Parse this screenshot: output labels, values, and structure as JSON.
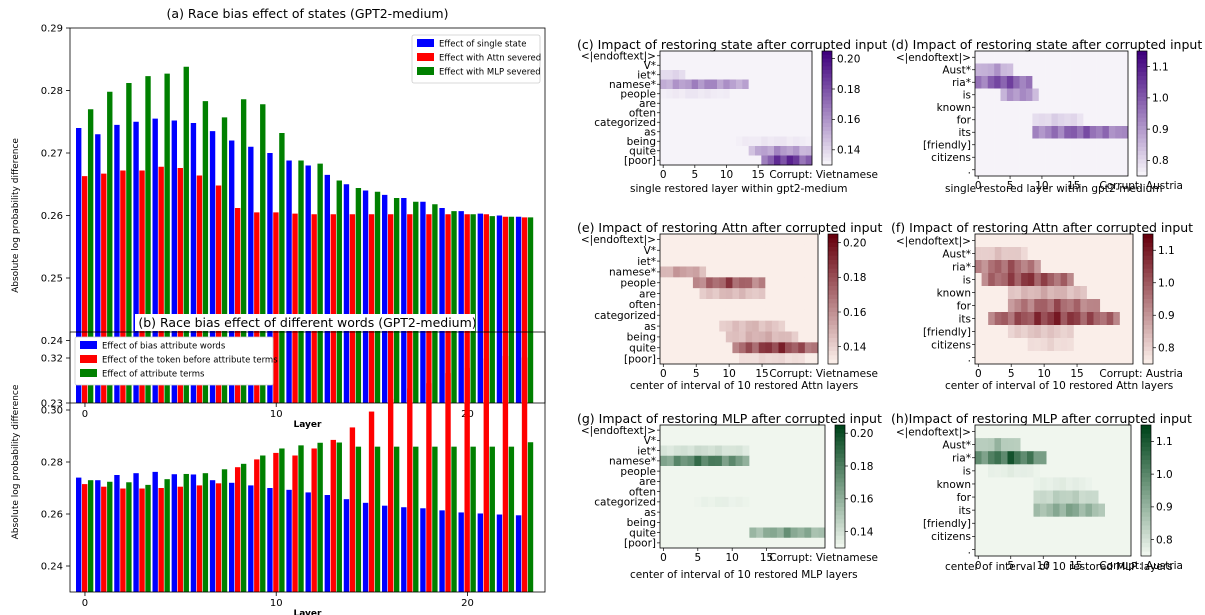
{
  "chart_data": [
    {
      "type": "bar",
      "title": "(a) Race bias effect of states (GPT2-medium)",
      "xlabel": "Layer",
      "ylabel": "Absolute log probability difference",
      "ylim": [
        0.23,
        0.29
      ],
      "yticks": [
        "0.23",
        "0.24",
        "0.25",
        "0.26",
        "0.27",
        "0.28",
        "0.29"
      ],
      "xticks": [
        "0",
        "10",
        "20"
      ],
      "legend_position": "top-right",
      "colors": [
        "#0000ff",
        "#ff0000",
        "#008000"
      ],
      "categories": [
        0,
        1,
        2,
        3,
        4,
        5,
        6,
        7,
        8,
        9,
        10,
        11,
        12,
        13,
        14,
        15,
        16,
        17,
        18,
        19,
        20,
        21,
        22,
        23
      ],
      "series": [
        {
          "name": "Effect of single state",
          "values": [
            0.274,
            0.273,
            0.2745,
            0.275,
            0.2755,
            0.2752,
            0.2748,
            0.2735,
            0.272,
            0.271,
            0.27,
            0.2688,
            0.268,
            0.2665,
            0.265,
            0.264,
            0.2633,
            0.2628,
            0.2622,
            0.2612,
            0.2607,
            0.2603,
            0.26,
            0.2598
          ]
        },
        {
          "name": "Effect with Attn severed",
          "values": [
            0.2663,
            0.2667,
            0.2672,
            0.2672,
            0.2678,
            0.2676,
            0.2664,
            0.2648,
            0.2612,
            0.2605,
            0.2605,
            0.2603,
            0.2602,
            0.2602,
            0.2602,
            0.2602,
            0.2602,
            0.2602,
            0.2602,
            0.2602,
            0.2602,
            0.2602,
            0.2598,
            0.2597
          ]
        },
        {
          "name": "Effect with MLP severed",
          "values": [
            0.277,
            0.2798,
            0.2812,
            0.2823,
            0.2827,
            0.2838,
            0.2783,
            0.2757,
            0.2786,
            0.2778,
            0.2732,
            0.2688,
            0.2683,
            0.2656,
            0.2644,
            0.2638,
            0.2628,
            0.2622,
            0.2618,
            0.2607,
            0.2602,
            0.2599,
            0.2598,
            0.2597
          ]
        }
      ]
    },
    {
      "type": "bar",
      "title": "(b) Race bias effect of different words (GPT2-medium)",
      "xlabel": "Layer",
      "ylabel": "Absolute log probability difference",
      "ylim": [
        0.23,
        0.33
      ],
      "yticks": [
        "0.24",
        "0.26",
        "0.28",
        "0.30",
        "0.32"
      ],
      "xticks": [
        "0",
        "10",
        "20"
      ],
      "legend_position": "top-left",
      "colors": [
        "#0000ff",
        "#ff0000",
        "#008000"
      ],
      "categories": [
        0,
        1,
        2,
        3,
        4,
        5,
        6,
        7,
        8,
        9,
        10,
        11,
        12,
        13,
        14,
        15,
        16,
        17,
        18,
        19,
        20,
        21,
        22,
        23
      ],
      "series": [
        {
          "name": "Effect of bias attribute words",
          "values": [
            0.274,
            0.273,
            0.275,
            0.2757,
            0.2762,
            0.2753,
            0.2752,
            0.273,
            0.272,
            0.271,
            0.27,
            0.2693,
            0.2683,
            0.2673,
            0.2657,
            0.2643,
            0.2632,
            0.2626,
            0.2622,
            0.2614,
            0.2606,
            0.2602,
            0.2598,
            0.2595
          ]
        },
        {
          "name": "Effect of the token before attribute terms",
          "values": [
            0.2715,
            0.2705,
            0.2698,
            0.2698,
            0.27,
            0.2705,
            0.271,
            0.2718,
            0.278,
            0.281,
            0.2835,
            0.2825,
            0.2852,
            0.2885,
            0.2933,
            0.2994,
            0.3043,
            0.3083,
            0.3103,
            0.3142,
            0.3162,
            0.3198,
            0.3208,
            0.3202
          ]
        },
        {
          "name": "Effect of attribute terms",
          "values": [
            0.273,
            0.2724,
            0.2722,
            0.2712,
            0.2734,
            0.2754,
            0.2757,
            0.2772,
            0.2793,
            0.2825,
            0.2852,
            0.2864,
            0.2874,
            0.2875,
            0.2859,
            0.2859,
            0.2859,
            0.2859,
            0.2859,
            0.2859,
            0.2859,
            0.2859,
            0.2859,
            0.2876
          ]
        }
      ]
    },
    {
      "type": "heatmap",
      "title": "(c) Impact of restoring state after corrupted input",
      "xlabel": "single restored layer within gpt2-medium",
      "corrupt_label": "Corrupt: Vietnamese",
      "colormap": "purple",
      "rows": [
        "<|endoftext|>",
        "V*",
        "iet*",
        "namese*",
        "people",
        "are",
        "often",
        "categorized",
        "as",
        "being",
        "quite",
        "[poor]"
      ],
      "xticks": [
        "0",
        "5",
        "10",
        "15"
      ],
      "ncols": 24,
      "vmin": 0.13,
      "vmax": 0.205,
      "cbar_ticks": [
        "0.20",
        "0.18",
        "0.16",
        "0.14"
      ],
      "blobs": [
        {
          "row": 3,
          "c0": 0,
          "c1": 13,
          "level": 0.55
        },
        {
          "row": 2,
          "c0": 0,
          "c1": 3,
          "level": 0.2
        },
        {
          "row": 4,
          "c0": 0,
          "c1": 10,
          "level": 0.1
        },
        {
          "row": 10,
          "c0": 14,
          "c1": 23,
          "level": 0.5
        },
        {
          "row": 11,
          "c0": 16,
          "c1": 23,
          "level": 1.0
        },
        {
          "row": 9,
          "c0": 12,
          "c1": 23,
          "level": 0.1
        }
      ]
    },
    {
      "type": "heatmap",
      "title": "(d) Impact of restoring state after corrupted input",
      "xlabel": "single restored layer within gpt2-medium",
      "corrupt_label": "Corrupt: Austria",
      "colormap": "purple",
      "rows": [
        "<|endoftext|>",
        "Aust*",
        "ria*",
        "is",
        "known",
        "for",
        "its",
        "[friendly]",
        "citizens",
        "."
      ],
      "xticks": [
        "0",
        "5",
        "10",
        "15"
      ],
      "ncols": 24,
      "vmin": 0.75,
      "vmax": 1.15,
      "cbar_ticks": [
        "1.1",
        "1.0",
        "0.9",
        "0.8"
      ],
      "blobs": [
        {
          "row": 1,
          "c0": 0,
          "c1": 5,
          "level": 0.45
        },
        {
          "row": 2,
          "c0": 0,
          "c1": 8,
          "level": 0.85
        },
        {
          "row": 3,
          "c0": 4,
          "c1": 9,
          "level": 0.55
        },
        {
          "row": 5,
          "c0": 9,
          "c1": 16,
          "level": 0.2
        },
        {
          "row": 6,
          "c0": 9,
          "c1": 23,
          "level": 0.75
        }
      ]
    },
    {
      "type": "heatmap",
      "title": "(e) Impact of restoring Attn after corrupted input",
      "xlabel": "center of interval of 10 restored Attn layers",
      "corrupt_label": "Corrupt: Vietnamese",
      "colormap": "red",
      "rows": [
        "<|endoftext|>",
        "V*",
        "iet*",
        "namese*",
        "people",
        "are",
        "often",
        "categorized",
        "as",
        "being",
        "quite",
        "[poor]"
      ],
      "xticks": [
        "0",
        "5",
        "10",
        "15"
      ],
      "ncols": 24,
      "vmin": 0.13,
      "vmax": 0.205,
      "cbar_ticks": [
        "0.20",
        "0.18",
        "0.16",
        "0.14"
      ],
      "blobs": [
        {
          "row": 3,
          "c0": 0,
          "c1": 6,
          "level": 0.45
        },
        {
          "row": 4,
          "c0": 5,
          "c1": 15,
          "level": 0.8
        },
        {
          "row": 5,
          "c0": 6,
          "c1": 15,
          "level": 0.3
        },
        {
          "row": 8,
          "c0": 9,
          "c1": 18,
          "level": 0.3
        },
        {
          "row": 9,
          "c0": 10,
          "c1": 20,
          "level": 0.35
        },
        {
          "row": 10,
          "c0": 11,
          "c1": 23,
          "level": 0.95
        },
        {
          "row": 11,
          "c0": 12,
          "c1": 21,
          "level": 0.15
        }
      ]
    },
    {
      "type": "heatmap",
      "title": "(f) Impact of restoring Attn after corrupted input",
      "xlabel": "center of interval of 10 restored Attn layers",
      "corrupt_label": "Corrupt: Austria",
      "colormap": "red",
      "rows": [
        "<|endoftext|>",
        "Aust*",
        "ria*",
        "is",
        "known",
        "for",
        "its",
        "[friendly]",
        "citizens",
        "."
      ],
      "xticks": [
        "0",
        "5",
        "10",
        "15"
      ],
      "ncols": 24,
      "vmin": 0.75,
      "vmax": 1.15,
      "cbar_ticks": [
        "1.1",
        "1.0",
        "0.9",
        "0.8"
      ],
      "blobs": [
        {
          "row": 1,
          "c0": 0,
          "c1": 7,
          "level": 0.25
        },
        {
          "row": 2,
          "c0": 0,
          "c1": 9,
          "level": 0.75
        },
        {
          "row": 3,
          "c0": 1,
          "c1": 14,
          "level": 0.9
        },
        {
          "row": 4,
          "c0": 5,
          "c1": 16,
          "level": 0.35
        },
        {
          "row": 5,
          "c0": 5,
          "c1": 18,
          "level": 0.75
        },
        {
          "row": 6,
          "c0": 2,
          "c1": 21,
          "level": 0.95
        },
        {
          "row": 7,
          "c0": 5,
          "c1": 14,
          "level": 0.25
        },
        {
          "row": 8,
          "c0": 8,
          "c1": 14,
          "level": 0.15
        }
      ]
    },
    {
      "type": "heatmap",
      "title": "(g) Impact of restoring MLP after corrupted input",
      "xlabel": "center of interval of 10 restored MLP layers",
      "corrupt_label": "Corrupt: Vietnamese",
      "colormap": "green",
      "rows": [
        "<|endoftext|>",
        "V*",
        "iet*",
        "namese*",
        "people",
        "are",
        "often",
        "categorized",
        "as",
        "being",
        "quite",
        "[poor]"
      ],
      "xticks": [
        "0",
        "5",
        "10",
        "15"
      ],
      "ncols": 24,
      "vmin": 0.13,
      "vmax": 0.205,
      "cbar_ticks": [
        "0.20",
        "0.18",
        "0.16",
        "0.14"
      ],
      "blobs": [
        {
          "row": 2,
          "c0": 0,
          "c1": 12,
          "level": 0.2
        },
        {
          "row": 3,
          "c0": 0,
          "c1": 12,
          "level": 0.85
        },
        {
          "row": 10,
          "c0": 13,
          "c1": 23,
          "level": 0.6
        },
        {
          "row": 7,
          "c0": 5,
          "c1": 12,
          "level": 0.08
        }
      ]
    },
    {
      "type": "heatmap",
      "title": "(h)Impact of restoring MLP after corrupted input",
      "xlabel": "center of interval of 10 restored MLP layers",
      "corrupt_label": "Corrupt: Austria",
      "colormap": "green",
      "rows": [
        "<|endoftext|>",
        "Aust*",
        "ria*",
        "is",
        "known",
        "for",
        "its",
        "[friendly]",
        "citizens",
        "."
      ],
      "xticks": [
        "0",
        "5",
        "10",
        "15"
      ],
      "ncols": 24,
      "vmin": 0.75,
      "vmax": 1.15,
      "cbar_ticks": [
        "1.1",
        "1.0",
        "0.9",
        "0.8"
      ],
      "blobs": [
        {
          "row": 1,
          "c0": 0,
          "c1": 6,
          "level": 0.4
        },
        {
          "row": 2,
          "c0": 0,
          "c1": 10,
          "level": 0.95
        },
        {
          "row": 3,
          "c0": 2,
          "c1": 9,
          "level": 0.1
        },
        {
          "row": 5,
          "c0": 9,
          "c1": 18,
          "level": 0.3
        },
        {
          "row": 6,
          "c0": 9,
          "c1": 19,
          "level": 0.55
        },
        {
          "row": 4,
          "c0": 9,
          "c1": 17,
          "level": 0.1
        }
      ]
    }
  ]
}
